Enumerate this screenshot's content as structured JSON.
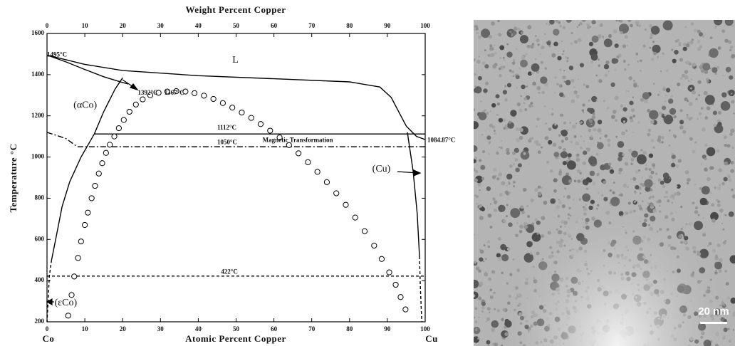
{
  "chart_data": {
    "type": "line",
    "xlabel": "Atomic Percent Copper",
    "x2label": "Weight Percent Copper",
    "ylabel": "Temperature °C",
    "x_end_labels": [
      "Co",
      "Cu"
    ],
    "xlim": [
      0,
      100
    ],
    "xticks": [
      0,
      10,
      20,
      30,
      40,
      50,
      60,
      70,
      80,
      90,
      100
    ],
    "x2lim": [
      0,
      100
    ],
    "x2ticks": [
      0,
      10,
      20,
      30,
      40,
      50,
      60,
      70,
      80,
      90,
      100
    ],
    "ylim": [
      200,
      1600
    ],
    "yticks": [
      200,
      400,
      600,
      800,
      1000,
      1200,
      1400,
      1600
    ],
    "annotations": [
      {
        "text": "1495°C",
        "x": 0,
        "y": 1495
      },
      {
        "text": "L",
        "x": 49,
        "y": 1470
      },
      {
        "text": "(αCo)",
        "x": 7,
        "y": 1250
      },
      {
        "text": "1392°C",
        "x": 24,
        "y": 1310
      },
      {
        "text": "1367°C",
        "x": 31,
        "y": 1310
      },
      {
        "text": "1112°C",
        "x": 45,
        "y": 1140
      },
      {
        "text": "1050°C",
        "x": 45,
        "y": 1070
      },
      {
        "text": "Magnetic Transformation",
        "x": 57,
        "y": 1080
      },
      {
        "text": "1084.87°C",
        "x": 100,
        "y": 1080
      },
      {
        "text": "(Cu)",
        "x": 86,
        "y": 940
      },
      {
        "text": "422°C",
        "x": 46,
        "y": 440
      },
      {
        "text": "(εCo)",
        "x": 2,
        "y": 290
      }
    ],
    "series": [
      {
        "color": "#000000",
        "dash": "solid",
        "x": [
          0,
          10,
          20,
          40,
          60,
          80,
          88,
          91,
          93,
          95,
          97.7,
          100
        ],
        "values": [
          1495,
          1450,
          1420,
          1395,
          1380,
          1365,
          1340,
          1290,
          1220,
          1150,
          1100,
          1085
        ]
      },
      {
        "color": "#000000",
        "dash": "solid",
        "x": [
          0,
          5,
          10,
          15,
          20,
          21.5
        ],
        "values": [
          1495,
          1462,
          1425,
          1390,
          1362,
          1355
        ]
      },
      {
        "color": "#000000",
        "dash": "solid",
        "x": [
          12.5,
          15,
          18,
          20
        ],
        "values": [
          1112,
          1220,
          1330,
          1385
        ]
      },
      {
        "color": "#000000",
        "dash": "solid",
        "x": [
          12.5,
          100
        ],
        "values": [
          1112,
          1112
        ]
      },
      {
        "color": "#000000",
        "dash": "dashdot",
        "x": [
          0,
          5,
          8,
          100
        ],
        "values": [
          1120,
          1090,
          1050,
          1050
        ]
      },
      {
        "color": "#000000",
        "dash": "solid",
        "x": [
          12.5,
          9,
          6,
          4,
          2.5,
          1.2
        ],
        "values": [
          1112,
          1000,
          880,
          760,
          620,
          500
        ]
      },
      {
        "color": "#000000",
        "dash": "dashed",
        "x": [
          1.2,
          0.6,
          0.3,
          0
        ],
        "values": [
          500,
          420,
          300,
          200
        ]
      },
      {
        "color": "#000000",
        "dash": "solid",
        "x": [
          95.3,
          96.8,
          97.9,
          98.5
        ],
        "values": [
          1120,
          933,
          725,
          518
        ]
      },
      {
        "color": "#000000",
        "dash": "dashed",
        "x": [
          98.5,
          98.7,
          99.1
        ],
        "values": [
          518,
          380,
          200
        ]
      },
      {
        "color": "#000000",
        "dash": "dashed",
        "x": [
          0,
          100
        ],
        "values": [
          422,
          422
        ]
      },
      {
        "color": "#000000",
        "marker": "circle",
        "x": [
          5.6,
          6.5,
          7.2,
          8.2,
          9.0,
          10.0,
          10.8,
          11.8,
          12.7,
          13.7,
          14.6,
          15.6,
          16.6,
          17.8,
          19.0,
          20.3,
          21.8,
          23.5,
          25.3,
          27.3,
          29.5,
          31.8,
          34.2,
          36.6,
          39,
          41.5,
          44,
          46.5,
          49,
          51.5,
          54,
          56.5,
          59,
          61.5,
          64,
          66.5,
          69,
          71.5,
          74,
          76.5,
          79,
          81.5,
          84,
          86.5,
          88.5,
          90.5,
          92.2,
          93.5,
          94.8
        ],
        "values": [
          230,
          330,
          420,
          510,
          590,
          670,
          730,
          800,
          860,
          920,
          970,
          1020,
          1060,
          1100,
          1140,
          1180,
          1220,
          1255,
          1280,
          1300,
          1312,
          1318,
          1320,
          1318,
          1310,
          1298,
          1282,
          1262,
          1240,
          1216,
          1190,
          1160,
          1128,
          1095,
          1058,
          1018,
          975,
          928,
          878,
          824,
          768,
          706,
          640,
          570,
          505,
          440,
          380,
          320,
          260
        ]
      }
    ]
  },
  "image": {
    "scale_bar_label": "20 nm"
  }
}
